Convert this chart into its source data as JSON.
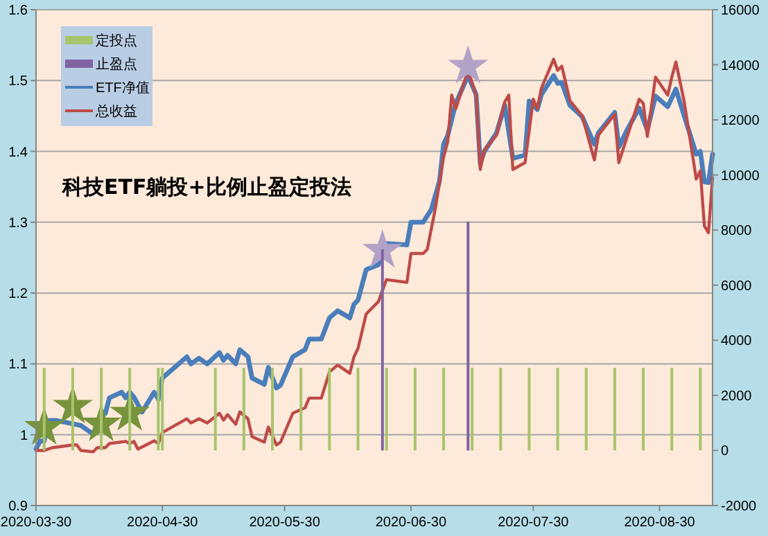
{
  "chart_data": {
    "type": "line",
    "title": "科技ETF躺投+比例止盈定投法",
    "xlim": [
      "2020-03-30",
      "2020-09-12"
    ],
    "xticks": [
      "2020-03-30",
      "2020-04-30",
      "2020-05-30",
      "2020-06-30",
      "2020-07-30",
      "2020-08-30"
    ],
    "ylim": [
      0.9,
      1.6
    ],
    "yticks": [
      0.9,
      1,
      1.1,
      1.2,
      1.3,
      1.4,
      1.5,
      1.6
    ],
    "y2lim": [
      -2000,
      16000
    ],
    "y2ticks": [
      -2000,
      0,
      2000,
      4000,
      6000,
      8000,
      10000,
      12000,
      14000,
      16000
    ],
    "grid": "y",
    "legend": "top left",
    "series": [
      {
        "name": "定投点",
        "type": "bar",
        "axis": "y2",
        "color": "#a8c46c",
        "x": [
          "2020-04-01",
          "2020-04-08",
          "2020-04-15",
          "2020-04-22",
          "2020-04-29",
          "2020-04-30",
          "2020-05-13",
          "2020-05-20",
          "2020-05-27",
          "2020-06-03",
          "2020-06-10",
          "2020-06-17",
          "2020-06-24",
          "2020-07-01",
          "2020-07-08",
          "2020-07-15",
          "2020-07-22",
          "2020-07-29",
          "2020-08-05",
          "2020-08-12",
          "2020-08-19",
          "2020-08-26",
          "2020-09-02",
          "2020-09-09"
        ],
        "values": [
          3000,
          3000,
          3000,
          3000,
          3000,
          3000,
          3000,
          3000,
          3000,
          3000,
          3000,
          3000,
          3000,
          3000,
          3000,
          3000,
          3000,
          3000,
          3000,
          3000,
          3000,
          3000,
          3000,
          3000
        ]
      },
      {
        "name": "止盈点",
        "type": "bar",
        "axis": "y2",
        "color": "#8064a2",
        "x": [
          "2020-06-23",
          "2020-07-14"
        ],
        "values": [
          7300,
          8300
        ]
      },
      {
        "name": "ETF净值",
        "color": "#4a7ebb",
        "x": [
          "2020-03-30",
          "2020-03-31",
          "2020-04-01",
          "2020-04-02",
          "2020-04-04",
          "2020-04-10",
          "2020-04-13",
          "2020-04-15",
          "2020-04-16",
          "2020-04-17",
          "2020-04-20",
          "2020-04-21",
          "2020-04-22",
          "2020-04-23",
          "2020-04-25",
          "2020-04-28",
          "2020-04-29",
          "2020-04-30",
          "2020-05-06",
          "2020-05-07",
          "2020-05-09",
          "2020-05-11",
          "2020-05-14",
          "2020-05-15",
          "2020-05-16",
          "2020-05-18",
          "2020-05-19",
          "2020-05-21",
          "2020-05-22",
          "2020-05-25",
          "2020-05-26",
          "2020-05-28",
          "2020-05-29",
          "2020-06-01",
          "2020-06-04",
          "2020-06-05",
          "2020-06-08",
          "2020-06-10",
          "2020-06-12",
          "2020-06-15",
          "2020-06-16",
          "2020-06-17",
          "2020-06-19",
          "2020-06-22",
          "2020-06-24",
          "2020-06-29",
          "2020-06-30",
          "2020-07-03",
          "2020-07-05",
          "2020-07-07",
          "2020-07-08",
          "2020-07-09",
          "2020-07-11",
          "2020-07-14",
          "2020-07-16",
          "2020-07-17",
          "2020-07-18",
          "2020-07-21",
          "2020-07-23",
          "2020-07-25",
          "2020-07-28",
          "2020-07-29",
          "2020-07-31",
          "2020-08-01",
          "2020-08-04",
          "2020-08-05",
          "2020-08-06",
          "2020-08-08",
          "2020-08-11",
          "2020-08-14",
          "2020-08-15",
          "2020-08-19",
          "2020-08-20",
          "2020-08-22",
          "2020-08-25",
          "2020-08-27",
          "2020-08-29",
          "2020-09-01",
          "2020-09-03",
          "2020-09-05",
          "2020-09-08",
          "2020-09-09",
          "2020-09-10",
          "2020-09-11",
          "2020-09-12"
        ],
        "values": [
          0.98,
          0.991,
          0.991,
          1.02,
          1.02,
          1.013,
          1.001,
          1.03,
          1.03,
          1.052,
          1.06,
          1.052,
          1.06,
          1.053,
          1.032,
          1.06,
          1.05,
          1.08,
          1.11,
          1.1,
          1.108,
          1.1,
          1.116,
          1.105,
          1.112,
          1.1,
          1.12,
          1.11,
          1.08,
          1.071,
          1.095,
          1.066,
          1.07,
          1.11,
          1.12,
          1.135,
          1.135,
          1.165,
          1.175,
          1.165,
          1.184,
          1.19,
          1.233,
          1.24,
          1.27,
          1.268,
          1.3,
          1.3,
          1.318,
          1.358,
          1.41,
          1.422,
          1.468,
          1.507,
          1.48,
          1.383,
          1.4,
          1.426,
          1.465,
          1.39,
          1.395,
          1.471,
          1.459,
          1.48,
          1.507,
          1.496,
          1.497,
          1.465,
          1.449,
          1.41,
          1.426,
          1.455,
          1.406,
          1.43,
          1.461,
          1.43,
          1.478,
          1.463,
          1.488,
          1.451,
          1.396,
          1.4,
          1.357,
          1.356,
          1.396
        ]
      },
      {
        "name": "总收益",
        "axis": "y2",
        "color": "#be4b48",
        "x": [
          "2020-03-30",
          "2020-04-01",
          "2020-04-03",
          "2020-04-08",
          "2020-04-09",
          "2020-04-10",
          "2020-04-13",
          "2020-04-14",
          "2020-04-16",
          "2020-04-17",
          "2020-04-21",
          "2020-04-22",
          "2020-04-23",
          "2020-04-24",
          "2020-04-28",
          "2020-04-29",
          "2020-04-30",
          "2020-05-06",
          "2020-05-07",
          "2020-05-09",
          "2020-05-11",
          "2020-05-14",
          "2020-05-15",
          "2020-05-16",
          "2020-05-18",
          "2020-05-19",
          "2020-05-21",
          "2020-05-22",
          "2020-05-25",
          "2020-05-26",
          "2020-05-28",
          "2020-05-29",
          "2020-06-01",
          "2020-06-04",
          "2020-06-05",
          "2020-06-08",
          "2020-06-10",
          "2020-06-12",
          "2020-06-15",
          "2020-06-16",
          "2020-06-17",
          "2020-06-19",
          "2020-06-22",
          "2020-06-24",
          "2020-06-29",
          "2020-06-30",
          "2020-07-03",
          "2020-07-04",
          "2020-07-06",
          "2020-07-08",
          "2020-07-09",
          "2020-07-10",
          "2020-07-11",
          "2020-07-14",
          "2020-07-16",
          "2020-07-17",
          "2020-07-18",
          "2020-07-21",
          "2020-07-23",
          "2020-07-24",
          "2020-07-25",
          "2020-07-28",
          "2020-07-30",
          "2020-07-31",
          "2020-08-01",
          "2020-08-04",
          "2020-08-05",
          "2020-08-06",
          "2020-08-08",
          "2020-08-11",
          "2020-08-14",
          "2020-08-15",
          "2020-08-19",
          "2020-08-20",
          "2020-08-25",
          "2020-08-26",
          "2020-08-27",
          "2020-08-29",
          "2020-09-01",
          "2020-09-02",
          "2020-09-03",
          "2020-09-05",
          "2020-09-08",
          "2020-09-09",
          "2020-09-10",
          "2020-09-11",
          "2020-09-12"
        ],
        "values": [
          0,
          0,
          100,
          200,
          200,
          0,
          -50,
          100,
          100,
          250,
          330,
          250,
          330,
          50,
          350,
          250,
          650,
          1150,
          1000,
          1150,
          1000,
          1350,
          1100,
          1300,
          950,
          1400,
          1150,
          500,
          300,
          850,
          200,
          300,
          1350,
          1550,
          1900,
          1900,
          2850,
          3100,
          2800,
          3400,
          3700,
          4950,
          5400,
          6200,
          6100,
          7150,
          7150,
          7300,
          8800,
          10650,
          11200,
          12900,
          12400,
          13800,
          12900,
          10200,
          10900,
          11450,
          12650,
          12900,
          10200,
          10450,
          12750,
          12400,
          13150,
          14200,
          13800,
          13950,
          12700,
          12150,
          10550,
          11450,
          12200,
          10450,
          12750,
          12600,
          11400,
          13550,
          12900,
          13550,
          14100,
          12700,
          9850,
          10150,
          8150,
          7900,
          9900
        ]
      },
      {
        "type": "scatter",
        "marker": "star",
        "color": "#77933c",
        "x": [
          "2020-04-01",
          "2020-04-08",
          "2020-04-15",
          "2020-04-22"
        ],
        "values": [
          1.01,
          1.04,
          1.015,
          1.03
        ]
      },
      {
        "type": "scatter",
        "marker": "star",
        "color": "#b3a2c7",
        "x": [
          "2020-06-23",
          "2020-07-14"
        ],
        "values": [
          1.26,
          1.52
        ]
      }
    ]
  }
}
